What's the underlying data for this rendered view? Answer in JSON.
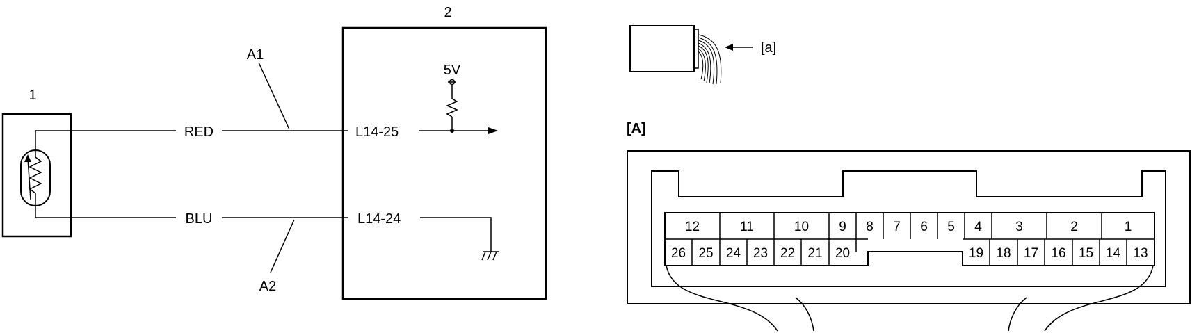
{
  "components": {
    "sensor_label": "1",
    "module_label": "2"
  },
  "wires": {
    "red": "RED",
    "blu": "BLU",
    "a1": "A1",
    "a2": "A2"
  },
  "terminals": {
    "l14_25": "L14-25",
    "l14_24": "L14-24"
  },
  "supply": "5V",
  "callout": "[a]",
  "connector": {
    "title": "[A]",
    "top_row": [
      {
        "label": "12"
      },
      {
        "label": "11"
      },
      {
        "label": "10"
      },
      {
        "label": "9"
      },
      {
        "label": "8"
      },
      {
        "label": "7"
      },
      {
        "label": "6"
      },
      {
        "label": "5"
      },
      {
        "label": "4"
      },
      {
        "label": "3"
      },
      {
        "label": "2"
      },
      {
        "label": "1"
      }
    ],
    "bottom_row": [
      {
        "label": "26"
      },
      {
        "label": "25"
      },
      {
        "label": "24"
      },
      {
        "label": "23"
      },
      {
        "label": "22"
      },
      {
        "label": "21"
      },
      {
        "label": "20"
      },
      {
        "label": "19"
      },
      {
        "label": "18"
      },
      {
        "label": "17"
      },
      {
        "label": "16"
      },
      {
        "label": "15"
      },
      {
        "label": "14"
      },
      {
        "label": "13"
      }
    ]
  }
}
